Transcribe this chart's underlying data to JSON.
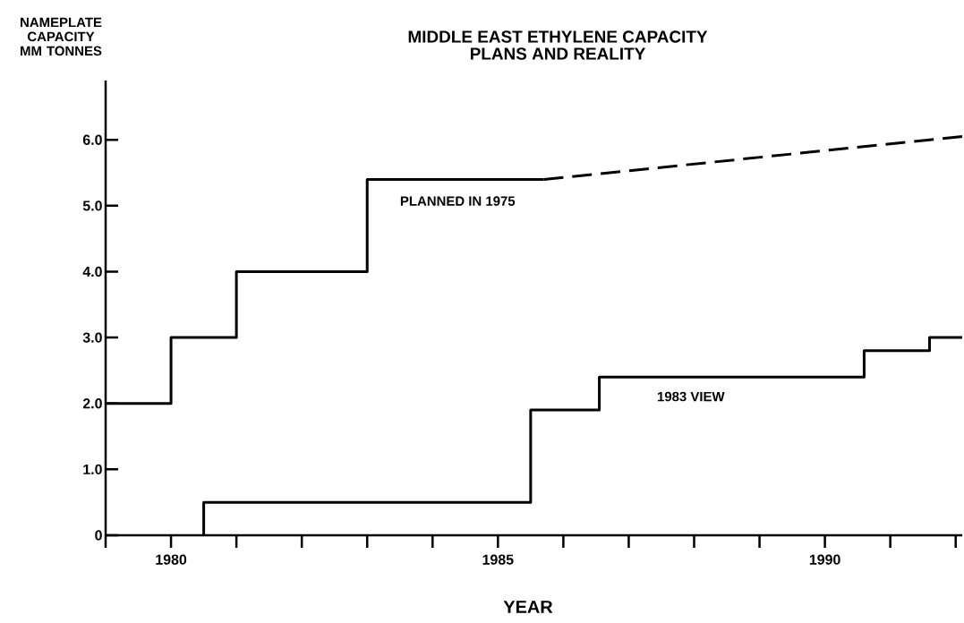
{
  "chart_data": {
    "type": "step",
    "title": "MIDDLE EAST ETHYLENE CAPACITY",
    "subtitle": "PLANS AND REALITY",
    "ylabel": "NAMEPLATE CAPACITY MM TONNES",
    "xlabel": "YEAR",
    "xlim": [
      1979,
      1992.1
    ],
    "ylim": [
      0,
      6.9
    ],
    "xticks": [
      {
        "value": 1979,
        "label": null
      },
      {
        "value": 1980,
        "label": "1980"
      },
      {
        "value": 1981,
        "label": null
      },
      {
        "value": 1982,
        "label": null
      },
      {
        "value": 1983,
        "label": null
      },
      {
        "value": 1984,
        "label": null
      },
      {
        "value": 1985,
        "label": "1985"
      },
      {
        "value": 1986,
        "label": null
      },
      {
        "value": 1987,
        "label": null
      },
      {
        "value": 1988,
        "label": null
      },
      {
        "value": 1989,
        "label": null
      },
      {
        "value": 1990,
        "label": "1990"
      },
      {
        "value": 1991,
        "label": null
      },
      {
        "value": 1992,
        "label": null
      }
    ],
    "yticks": [
      0,
      {
        "value": 1,
        "label": "1.0"
      },
      {
        "value": 2,
        "label": "2.0"
      },
      {
        "value": 3,
        "label": "3.0"
      },
      {
        "value": 4,
        "label": "4.0"
      },
      {
        "value": 5,
        "label": "5.0"
      },
      {
        "value": 6,
        "label": "6.0"
      }
    ],
    "series": [
      {
        "name": "PLANNED IN 1975",
        "color": "#000000",
        "x": [
          1979,
          1980,
          1981,
          1983,
          1985.7
        ],
        "values": [
          2.0,
          3.0,
          4.0,
          5.4,
          5.4
        ]
      },
      {
        "type": "line",
        "line_style": "dashed",
        "color": "#000000",
        "x": [
          1985.7,
          1992.1
        ],
        "values": [
          5.4,
          6.05
        ]
      },
      {
        "name": "1983 VIEW",
        "color": "#000000",
        "x": [
          1980.5,
          1980.5,
          1985.5,
          1986.55,
          1990.6,
          1991.6,
          1992.1
        ],
        "values": [
          0,
          0.5,
          1.9,
          2.4,
          2.8,
          3.0,
          3.0
        ]
      }
    ]
  }
}
